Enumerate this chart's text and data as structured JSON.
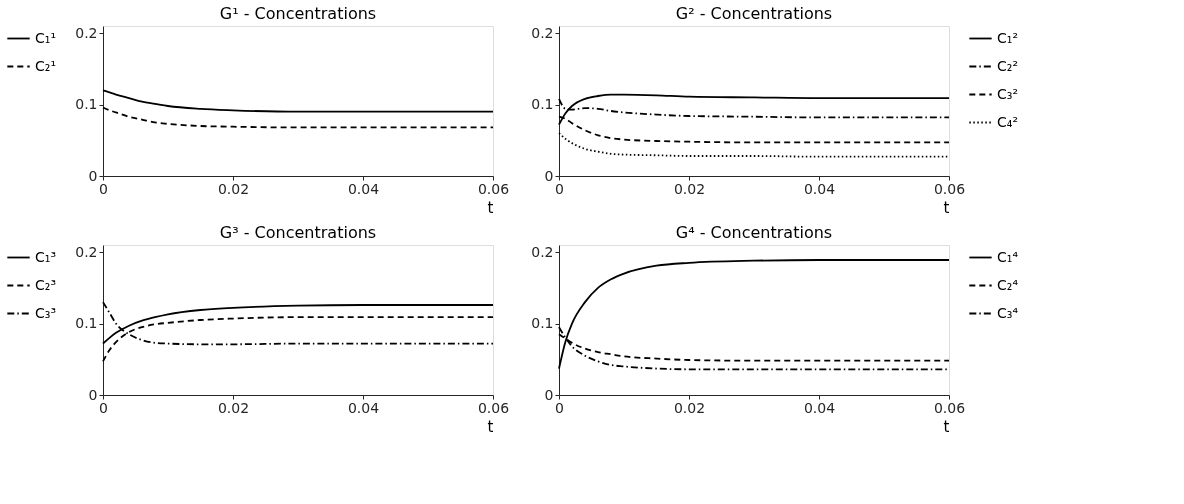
{
  "chart_data": [
    {
      "type": "line",
      "title": "G¹ - Concentrations",
      "xlabel": "t",
      "x": [
        0,
        0.001,
        0.002,
        0.004,
        0.006,
        0.008,
        0.01,
        0.015,
        0.02,
        0.03,
        0.04,
        0.06
      ],
      "xlim": [
        0,
        0.06
      ],
      "xticks": [
        0,
        0.02,
        0.04,
        0.06
      ],
      "ylim": [
        0,
        0.21
      ],
      "yticks": [
        0,
        0.1,
        0.2
      ],
      "grid": false,
      "legend": "left",
      "marker": "none",
      "series": [
        {
          "name": "C₁¹",
          "color": "#000000",
          "line_style": "solid",
          "values": [
            0.12,
            0.117,
            0.114,
            0.109,
            0.104,
            0.101,
            0.098,
            0.094,
            0.092,
            0.09,
            0.09,
            0.09
          ]
        },
        {
          "name": "C₂¹",
          "color": "#000000",
          "line_style": "dashed",
          "values": [
            0.096,
            0.092,
            0.089,
            0.083,
            0.079,
            0.075,
            0.073,
            0.07,
            0.069,
            0.068,
            0.068,
            0.068
          ]
        }
      ]
    },
    {
      "type": "line",
      "title": "G² - Concentrations",
      "xlabel": "t",
      "x": [
        0,
        0.001,
        0.002,
        0.004,
        0.006,
        0.008,
        0.01,
        0.015,
        0.02,
        0.03,
        0.04,
        0.06
      ],
      "xlim": [
        0,
        0.06
      ],
      "xticks": [
        0,
        0.02,
        0.04,
        0.06
      ],
      "ylim": [
        0,
        0.21
      ],
      "yticks": [
        0,
        0.1,
        0.2
      ],
      "grid": false,
      "legend": "right",
      "marker": "none",
      "series": [
        {
          "name": "C₁²",
          "color": "#000000",
          "line_style": "solid",
          "values": [
            0.072,
            0.088,
            0.098,
            0.108,
            0.112,
            0.114,
            0.114,
            0.113,
            0.111,
            0.11,
            0.109,
            0.109
          ]
        },
        {
          "name": "C₂²",
          "color": "#000000",
          "line_style": "dashdot",
          "values": [
            0.108,
            0.094,
            0.093,
            0.095,
            0.094,
            0.091,
            0.089,
            0.086,
            0.084,
            0.083,
            0.082,
            0.082
          ]
        },
        {
          "name": "C₃²",
          "color": "#000000",
          "line_style": "dashed",
          "values": [
            0.083,
            0.08,
            0.074,
            0.064,
            0.057,
            0.053,
            0.051,
            0.049,
            0.048,
            0.047,
            0.047,
            0.047
          ]
        },
        {
          "name": "C₄²",
          "color": "#000000",
          "line_style": "dotted",
          "values": [
            0.06,
            0.052,
            0.046,
            0.038,
            0.034,
            0.031,
            0.03,
            0.029,
            0.028,
            0.028,
            0.027,
            0.027
          ]
        }
      ]
    },
    {
      "type": "line",
      "title": "G³ - Concentrations",
      "xlabel": "t",
      "x": [
        0,
        0.001,
        0.002,
        0.004,
        0.006,
        0.008,
        0.01,
        0.015,
        0.02,
        0.03,
        0.04,
        0.06
      ],
      "xlim": [
        0,
        0.06
      ],
      "xticks": [
        0,
        0.02,
        0.04,
        0.06
      ],
      "ylim": [
        0,
        0.21
      ],
      "yticks": [
        0,
        0.1,
        0.2
      ],
      "grid": false,
      "legend": "left",
      "marker": "none",
      "series": [
        {
          "name": "C₁³",
          "color": "#000000",
          "line_style": "solid",
          "values": [
            0.072,
            0.08,
            0.087,
            0.097,
            0.104,
            0.109,
            0.113,
            0.119,
            0.122,
            0.125,
            0.126,
            0.126
          ]
        },
        {
          "name": "C₂³",
          "color": "#000000",
          "line_style": "dashed",
          "values": [
            0.047,
            0.063,
            0.074,
            0.088,
            0.095,
            0.099,
            0.101,
            0.105,
            0.107,
            0.109,
            0.109,
            0.109
          ]
        },
        {
          "name": "C₃³",
          "color": "#000000",
          "line_style": "dashdot",
          "values": [
            0.13,
            0.115,
            0.1,
            0.085,
            0.077,
            0.073,
            0.072,
            0.071,
            0.071,
            0.072,
            0.072,
            0.072
          ]
        }
      ]
    },
    {
      "type": "line",
      "title": "G⁴ - Concentrations",
      "xlabel": "t",
      "x": [
        0,
        0.001,
        0.002,
        0.004,
        0.006,
        0.008,
        0.01,
        0.015,
        0.02,
        0.03,
        0.04,
        0.06
      ],
      "xlim": [
        0,
        0.06
      ],
      "xticks": [
        0,
        0.02,
        0.04,
        0.06
      ],
      "ylim": [
        0,
        0.21
      ],
      "yticks": [
        0,
        0.1,
        0.2
      ],
      "grid": false,
      "legend": "right",
      "marker": "none",
      "series": [
        {
          "name": "C₁⁴",
          "color": "#000000",
          "line_style": "solid",
          "values": [
            0.037,
            0.075,
            0.1,
            0.13,
            0.15,
            0.162,
            0.17,
            0.181,
            0.185,
            0.188,
            0.189,
            0.189
          ]
        },
        {
          "name": "C₂⁴",
          "color": "#000000",
          "line_style": "dashed",
          "values": [
            0.085,
            0.079,
            0.073,
            0.065,
            0.06,
            0.057,
            0.054,
            0.051,
            0.049,
            0.048,
            0.048,
            0.048
          ]
        },
        {
          "name": "C₃⁴",
          "color": "#000000",
          "line_style": "dashdot",
          "values": [
            0.095,
            0.08,
            0.068,
            0.055,
            0.047,
            0.042,
            0.04,
            0.037,
            0.036,
            0.036,
            0.036,
            0.036
          ]
        }
      ]
    }
  ]
}
